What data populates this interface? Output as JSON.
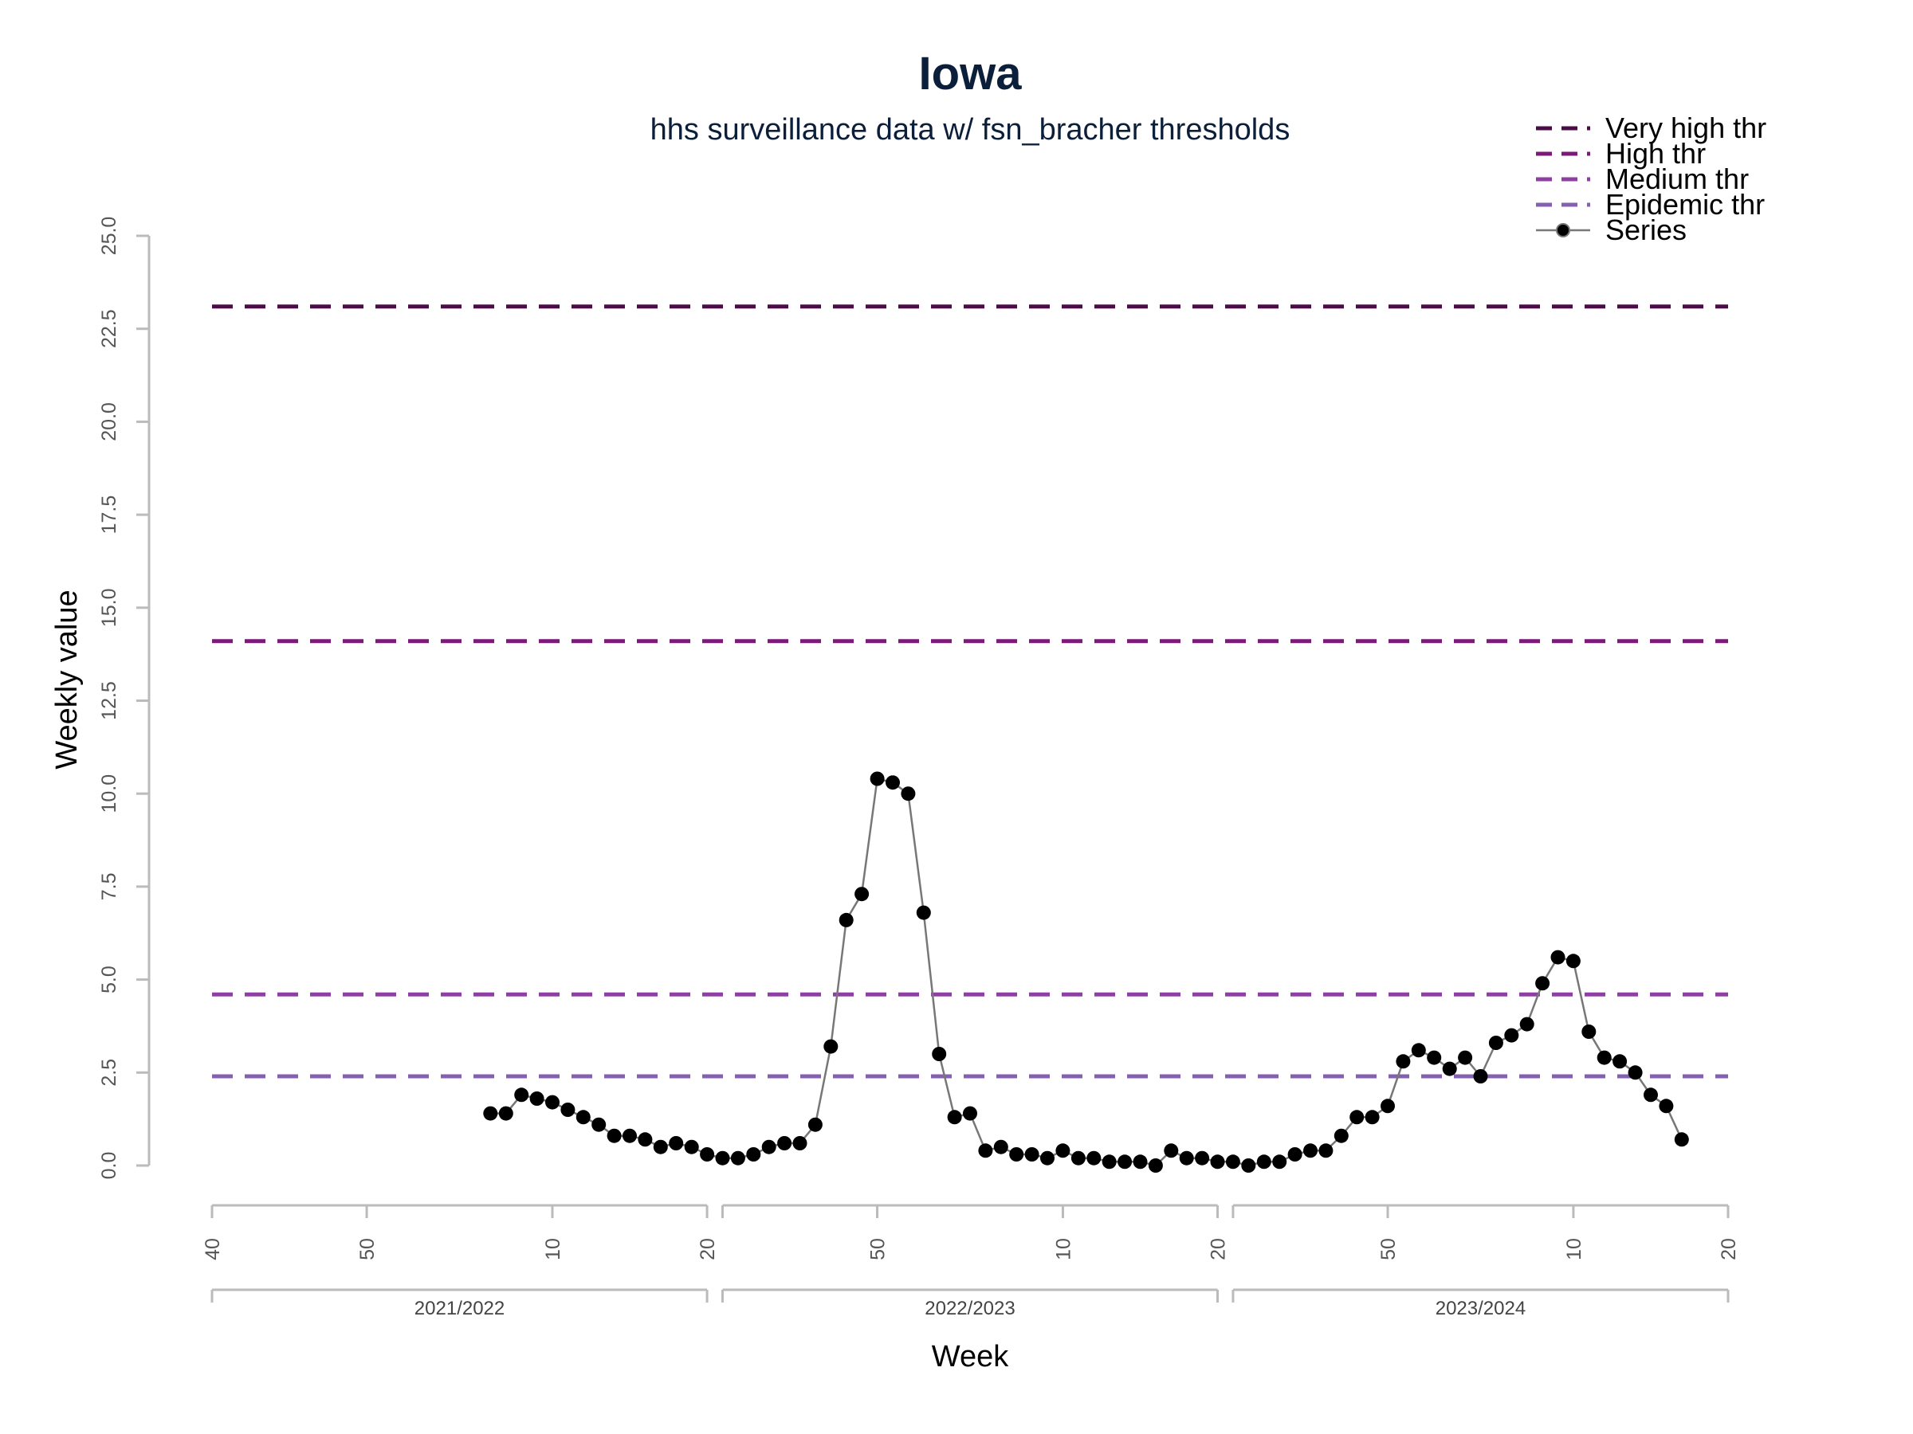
{
  "chart_data": {
    "type": "line",
    "title": "Iowa",
    "subtitle": "hhs surveillance data w/ fsn_bracher thresholds",
    "xlabel": "Week",
    "ylabel": "Weekly value",
    "ylim": [
      0,
      25
    ],
    "yticks": [
      "0.0",
      "2.5",
      "5.0",
      "7.5",
      "10.0",
      "12.5",
      "15.0",
      "17.5",
      "20.0",
      "22.5",
      "25.0"
    ],
    "xlim": [
      0,
      98
    ],
    "xticks": [
      {
        "x": 0,
        "label": "40"
      },
      {
        "x": 10,
        "label": "50"
      },
      {
        "x": 22,
        "label": "10"
      },
      {
        "x": 32,
        "label": "20"
      },
      {
        "x": 43,
        "label": "50"
      },
      {
        "x": 55,
        "label": "10"
      },
      {
        "x": 65,
        "label": "20"
      },
      {
        "x": 76,
        "label": "50"
      },
      {
        "x": 88,
        "label": "10"
      },
      {
        "x": 98,
        "label": "20"
      }
    ],
    "season_breaks": [
      32,
      33,
      65,
      66
    ],
    "seasons": [
      {
        "label": "2021/2022",
        "start": 0,
        "end": 32
      },
      {
        "label": "2022/2023",
        "start": 33,
        "end": 65
      },
      {
        "label": "2023/2024",
        "start": 66,
        "end": 98
      }
    ],
    "thresholds": [
      {
        "name": "Very high thr",
        "value": 23.1,
        "color": "#4a0d45"
      },
      {
        "name": "High thr",
        "value": 14.1,
        "color": "#7b1a78"
      },
      {
        "name": "Medium thr",
        "value": 4.6,
        "color": "#8e3fa3"
      },
      {
        "name": "Epidemic thr",
        "value": 2.4,
        "color": "#8460b0"
      }
    ],
    "series": [
      {
        "name": "Series",
        "color": "#000000",
        "x": [
          18,
          19,
          20,
          21,
          22,
          23,
          24,
          25,
          26,
          27,
          28,
          29,
          30,
          31,
          32,
          33,
          34,
          35,
          36,
          37,
          38,
          39,
          40,
          41,
          42,
          43,
          44,
          45,
          46,
          47,
          48,
          49,
          50,
          51,
          52,
          53,
          54,
          55,
          56,
          57,
          58,
          59,
          60,
          61,
          62,
          63,
          64,
          65,
          66,
          67,
          68,
          69,
          70,
          71,
          72,
          73,
          74,
          75,
          76,
          77,
          78,
          79,
          80,
          81,
          82,
          83,
          84,
          85,
          86,
          87,
          88,
          89,
          90,
          91,
          92,
          93,
          94,
          95
        ],
        "y": [
          1.4,
          1.4,
          1.9,
          1.8,
          1.7,
          1.5,
          1.3,
          1.1,
          0.8,
          0.8,
          0.7,
          0.5,
          0.6,
          0.5,
          0.3,
          0.2,
          0.2,
          0.3,
          0.5,
          0.6,
          0.6,
          1.1,
          3.2,
          6.6,
          7.3,
          10.4,
          10.3,
          10.0,
          6.8,
          3.0,
          1.3,
          1.4,
          0.4,
          0.5,
          0.3,
          0.3,
          0.2,
          0.4,
          0.2,
          0.2,
          0.1,
          0.1,
          0.1,
          0.0,
          0.4,
          0.2,
          0.2,
          0.1,
          0.1,
          0.0,
          0.1,
          0.1,
          0.3,
          0.4,
          0.4,
          0.8,
          1.3,
          1.3,
          1.6,
          2.8,
          3.1,
          2.9,
          2.6,
          2.9,
          2.4,
          3.3,
          3.5,
          3.8,
          4.9,
          5.6,
          5.5,
          3.6,
          2.9,
          2.8,
          2.5,
          1.9,
          1.6,
          0.7
        ]
      }
    ],
    "legend_position": "top-right",
    "grid": false
  }
}
